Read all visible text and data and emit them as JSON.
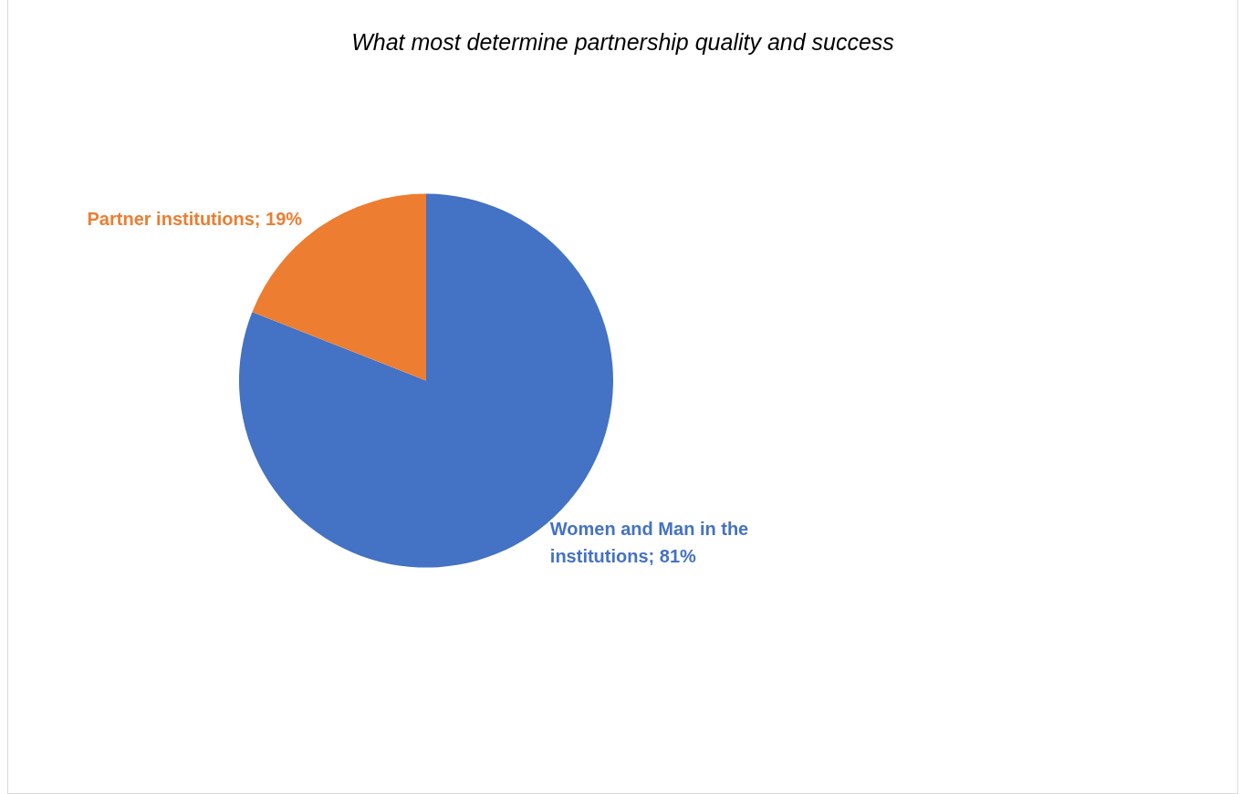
{
  "chart_data": {
    "type": "pie",
    "title": "What most determine partnership quality and success",
    "categories": [
      "Women and Man in the institutions",
      "Partner institutions"
    ],
    "values": [
      81,
      19
    ],
    "value_labels": [
      "81%",
      "19%"
    ],
    "colors": [
      "#4472c4",
      "#ed7d31"
    ],
    "legend": false
  }
}
